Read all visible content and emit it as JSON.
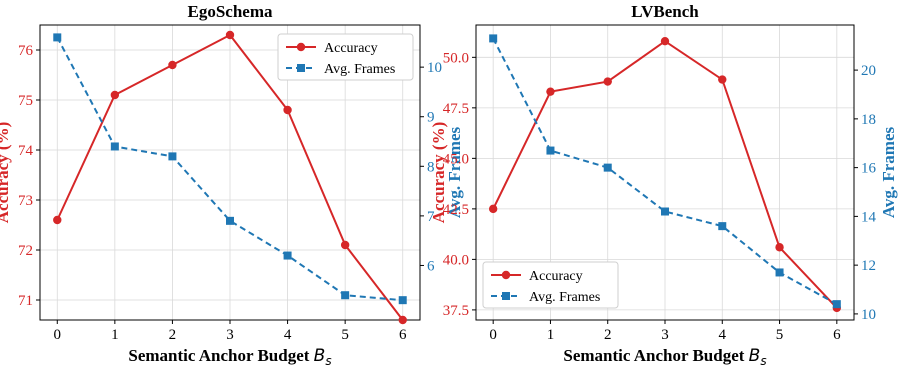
{
  "chart_data": [
    {
      "type": "line",
      "title": "EgoSchema",
      "xlabel": "Semantic Anchor Budget",
      "xlabel_symbol": "B",
      "xlabel_subscript": "s",
      "ylabel": "Accuracy (%)",
      "ylabel_right": "Avg. Frames",
      "x": [
        0,
        1,
        2,
        3,
        4,
        5,
        6
      ],
      "xlim": [
        -0.3,
        6.3
      ],
      "ylim": [
        70.6,
        76.5
      ],
      "ylim_right": [
        4.9,
        10.85
      ],
      "yticks": [
        71,
        72,
        73,
        74,
        75,
        76
      ],
      "yticks_right": [
        6,
        7,
        8,
        9,
        10
      ],
      "grid": true,
      "legend_position": "top-right",
      "series": [
        {
          "name": "Accuracy",
          "axis": "left",
          "color": "#d62728",
          "marker": "circle",
          "dash": "solid",
          "values": [
            72.6,
            75.1,
            75.7,
            76.3,
            74.8,
            72.1,
            70.6
          ]
        },
        {
          "name": "Avg. Frames",
          "axis": "right",
          "color": "#1f77b4",
          "marker": "square",
          "dash": "dashed",
          "values": [
            10.6,
            8.4,
            8.2,
            6.9,
            6.2,
            5.4,
            5.3
          ]
        }
      ]
    },
    {
      "type": "line",
      "title": "LVBench",
      "xlabel": "Semantic Anchor Budget",
      "xlabel_symbol": "B",
      "xlabel_subscript": "s",
      "ylabel": "Accuracy (%)",
      "ylabel_right": "Avg. Frames",
      "x": [
        0,
        1,
        2,
        3,
        4,
        5,
        6
      ],
      "xlim": [
        -0.3,
        6.3
      ],
      "ylim": [
        37.0,
        51.6
      ],
      "ylim_right": [
        9.75,
        21.85
      ],
      "yticks": [
        37.5,
        40.0,
        42.5,
        45.0,
        47.5,
        50.0
      ],
      "yticks_right": [
        10,
        12,
        14,
        16,
        18,
        20
      ],
      "grid": true,
      "legend_position": "lower-left",
      "series": [
        {
          "name": "Accuracy",
          "axis": "left",
          "color": "#d62728",
          "marker": "circle",
          "dash": "solid",
          "values": [
            42.5,
            48.3,
            48.8,
            50.8,
            48.9,
            40.6,
            37.6
          ]
        },
        {
          "name": "Avg. Frames",
          "axis": "right",
          "color": "#1f77b4",
          "marker": "square",
          "dash": "dashed",
          "values": [
            21.3,
            16.7,
            16.0,
            14.2,
            13.6,
            11.7,
            10.4
          ]
        }
      ]
    }
  ]
}
